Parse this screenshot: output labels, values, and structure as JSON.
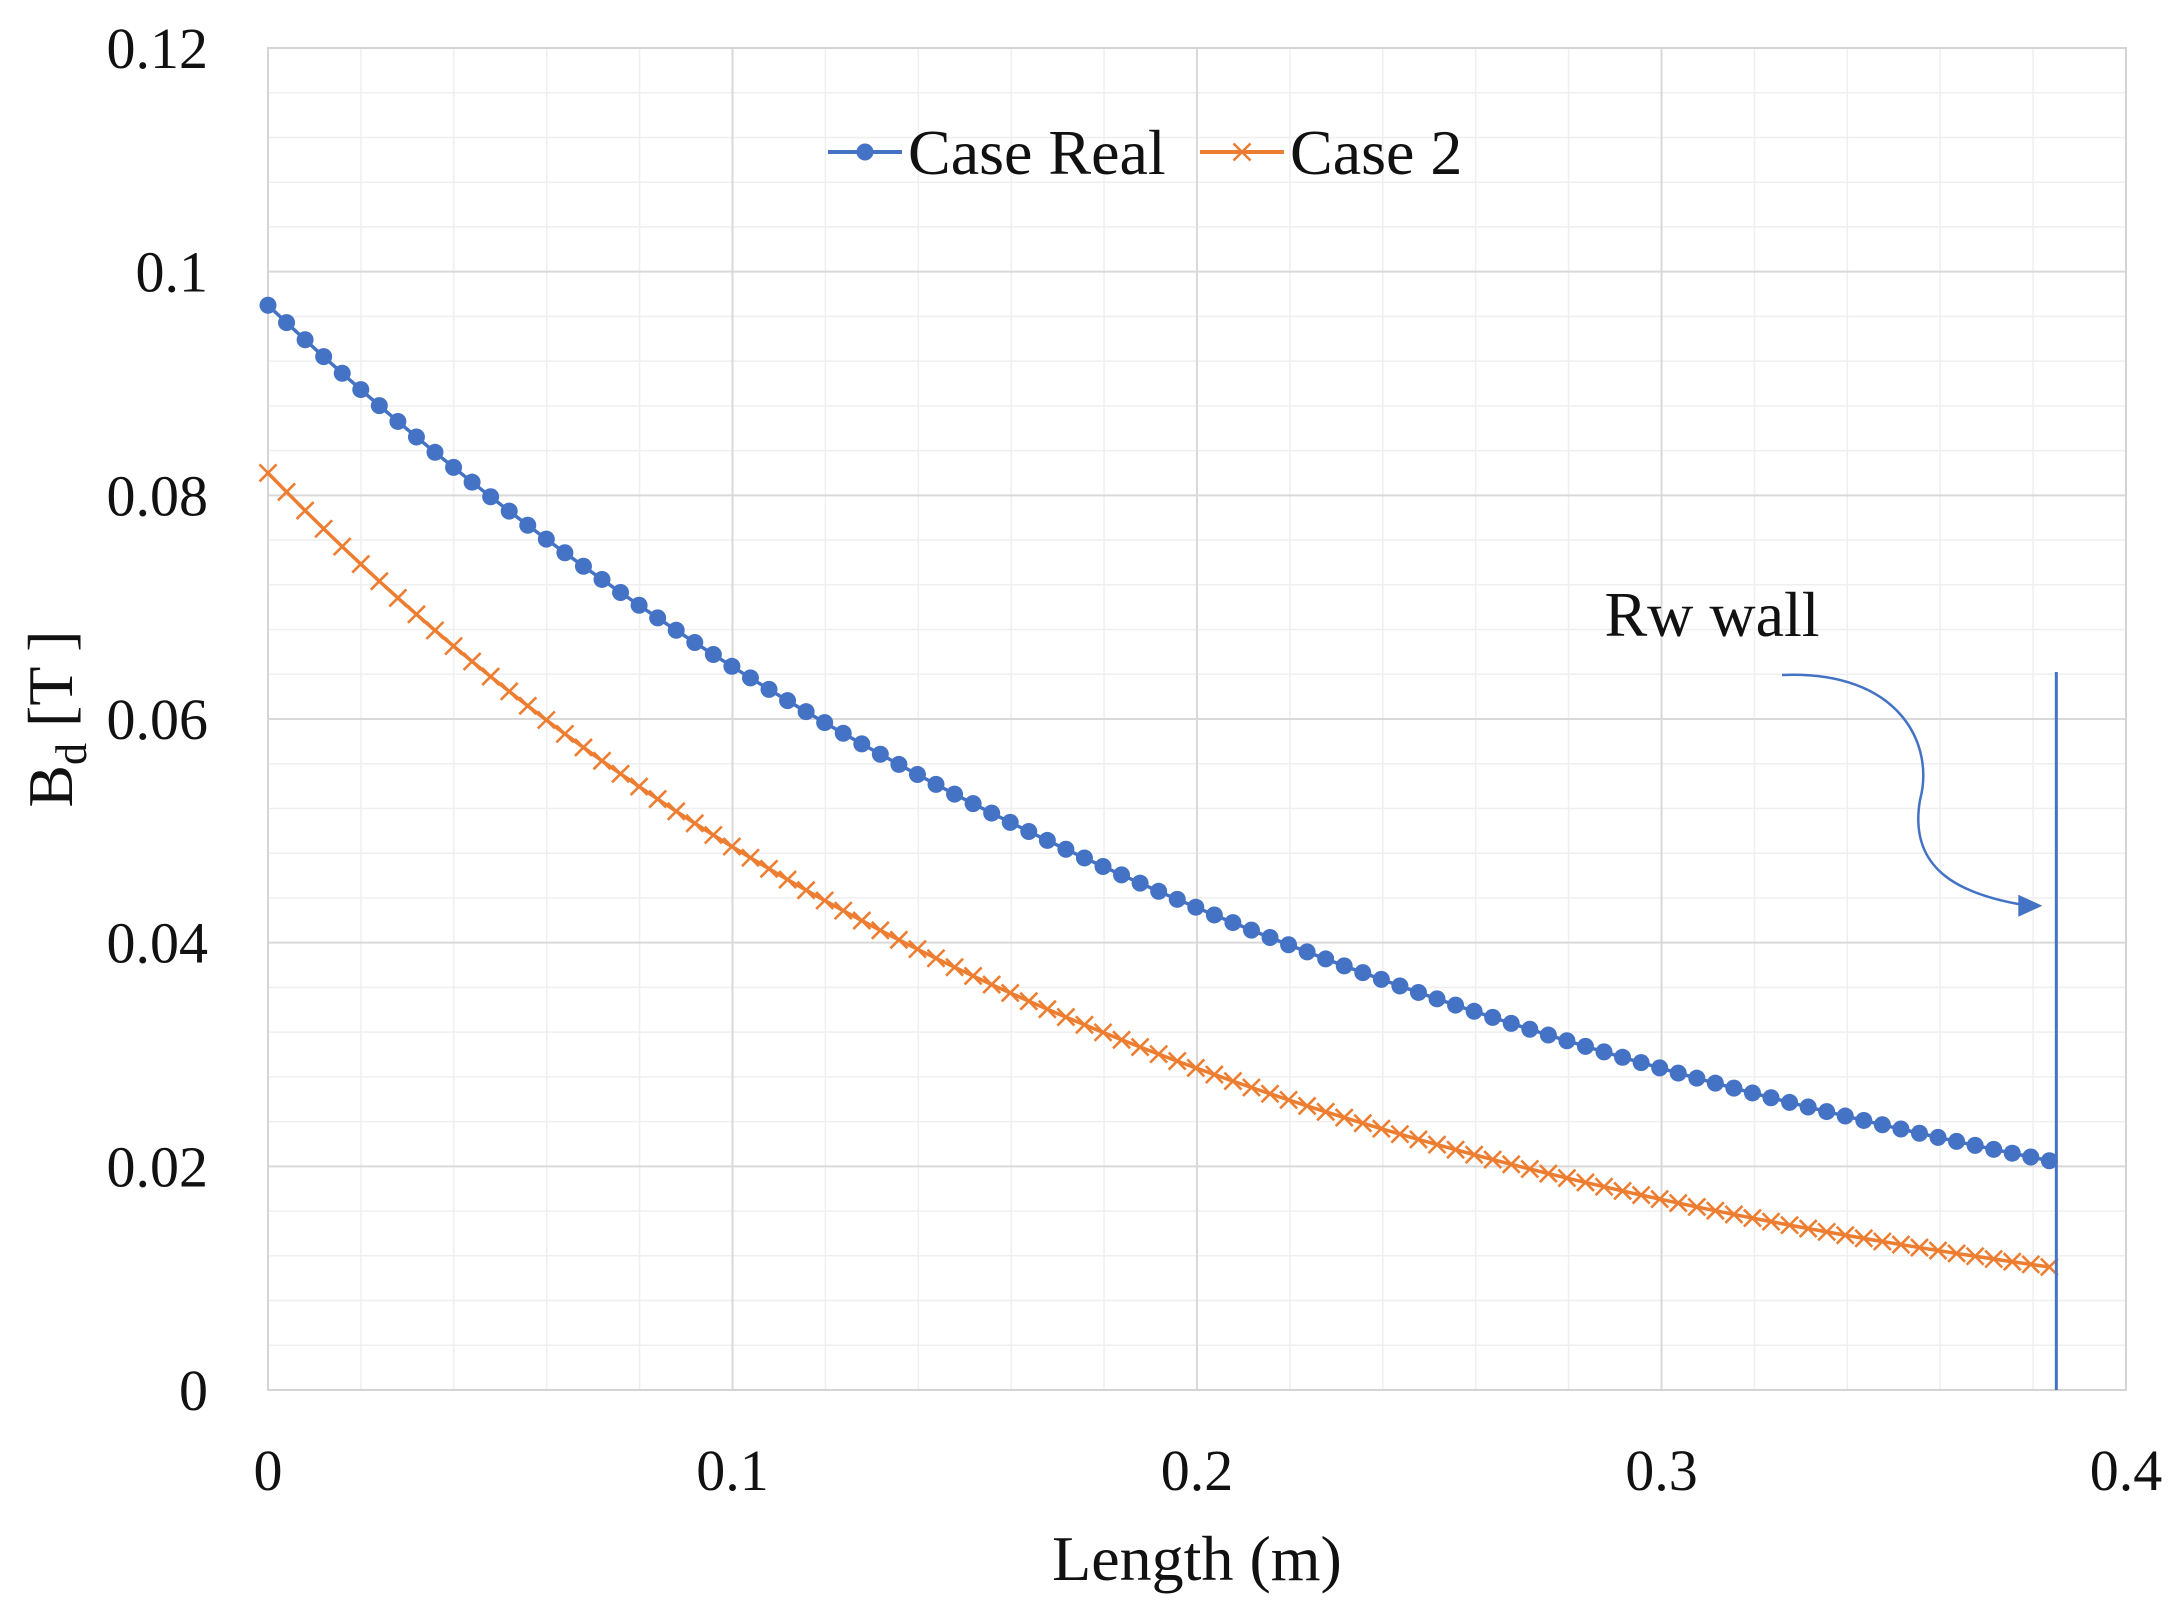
{
  "chart_data": {
    "type": "line",
    "title": "",
    "xlabel": "Length (m)",
    "ylabel": {
      "main": "B",
      "subscript": "d",
      "unit": " [T ]"
    },
    "xlim": [
      0,
      0.4
    ],
    "ylim": [
      0,
      0.12
    ],
    "x_ticks": [
      0,
      0.1,
      0.2,
      0.3,
      0.4
    ],
    "x_tick_labels": [
      "0",
      "0.1",
      "0.2",
      "0.3",
      "0.4"
    ],
    "y_ticks": [
      0,
      0.02,
      0.04,
      0.06,
      0.08,
      0.1,
      0.12
    ],
    "y_tick_labels": [
      "0",
      "0.02",
      "0.04",
      "0.06",
      "0.08",
      "0.1",
      "0.12"
    ],
    "grid": true,
    "legend_position": "top-center",
    "series": [
      {
        "name": "Case Real",
        "color": "#4472C4",
        "marker": "circle",
        "model": {
          "x_start": 0,
          "x_end": 0.3835,
          "n_points": 97,
          "y0": 0.097,
          "y_end": 0.0205
        }
      },
      {
        "name": "Case 2",
        "color": "#ED7D31",
        "marker": "x",
        "model": {
          "x_start": 0,
          "x_end": 0.3835,
          "n_points": 97,
          "y0": 0.082,
          "y_end": 0.011
        }
      }
    ],
    "annotations": [
      {
        "text": "Rw wall",
        "x_value": 0.385,
        "arrow_to_y": 0.0433,
        "color": "#4472C4"
      }
    ]
  }
}
